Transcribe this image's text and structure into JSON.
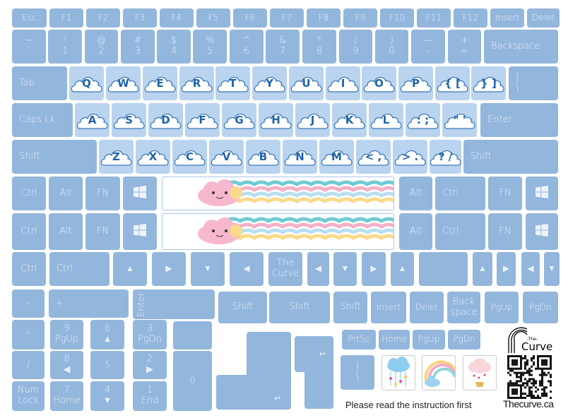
{
  "colors": {
    "key": "#93b6dc",
    "letter_key": "#bad3ee",
    "letter_text": "#1d63ad",
    "key_text": "#e8f0fa"
  },
  "rows": {
    "function_row": [
      {
        "label": "Esc"
      },
      {
        "label": "F1"
      },
      {
        "label": "F2"
      },
      {
        "label": "F3"
      },
      {
        "label": "F4"
      },
      {
        "label": "F5"
      },
      {
        "label": "F6"
      },
      {
        "label": "F7"
      },
      {
        "label": "F8"
      },
      {
        "label": "F9"
      },
      {
        "label": "F10"
      },
      {
        "label": "F11"
      },
      {
        "label": "F12"
      },
      {
        "label": "Insert"
      },
      {
        "label": "Delet"
      }
    ],
    "number_row": [
      {
        "top": "~",
        "bottom": "`"
      },
      {
        "top": "!",
        "bottom": "1"
      },
      {
        "top": "@",
        "bottom": "2"
      },
      {
        "top": "#",
        "bottom": "3"
      },
      {
        "top": "$",
        "bottom": "4"
      },
      {
        "top": "%",
        "bottom": "5"
      },
      {
        "top": "^",
        "bottom": "6"
      },
      {
        "top": "&",
        "bottom": "7"
      },
      {
        "top": "*",
        "bottom": "8"
      },
      {
        "top": "(",
        "bottom": "9"
      },
      {
        "top": ")",
        "bottom": "0"
      },
      {
        "top": "—",
        "bottom": "-"
      },
      {
        "top": "+",
        "bottom": "="
      },
      {
        "label": "Backspace"
      }
    ],
    "qwerty_row": [
      {
        "label": "Tab"
      },
      {
        "label": "Q",
        "cloud": true
      },
      {
        "label": "W",
        "cloud": true
      },
      {
        "label": "E",
        "cloud": true
      },
      {
        "label": "R",
        "cloud": true
      },
      {
        "label": "T",
        "cloud": true
      },
      {
        "label": "Y",
        "cloud": true
      },
      {
        "label": "U",
        "cloud": true
      },
      {
        "label": "I",
        "cloud": true
      },
      {
        "label": "O",
        "cloud": true
      },
      {
        "label": "P",
        "cloud": true
      },
      {
        "label": "{ [",
        "cloud": true
      },
      {
        "label": "} ]",
        "cloud": true
      },
      {
        "top": "|",
        "bottom": "\\"
      }
    ],
    "home_row": [
      {
        "label": "Caps Lk"
      },
      {
        "label": "A",
        "cloud": true
      },
      {
        "label": "S",
        "cloud": true
      },
      {
        "label": "D",
        "cloud": true
      },
      {
        "label": "F",
        "cloud": true
      },
      {
        "label": "G",
        "cloud": true
      },
      {
        "label": "H",
        "cloud": true
      },
      {
        "label": "J",
        "cloud": true
      },
      {
        "label": "K",
        "cloud": true
      },
      {
        "label": "L",
        "cloud": true
      },
      {
        "label": ": ;",
        "cloud": true
      },
      {
        "label": "\" '",
        "cloud": true
      },
      {
        "label": "Enter"
      }
    ],
    "shift_row": [
      {
        "label": "Shift"
      },
      {
        "label": "Z",
        "cloud": true
      },
      {
        "label": "X",
        "cloud": true
      },
      {
        "label": "C",
        "cloud": true
      },
      {
        "label": "V",
        "cloud": true
      },
      {
        "label": "B",
        "cloud": true
      },
      {
        "label": "N",
        "cloud": true
      },
      {
        "label": "M",
        "cloud": true
      },
      {
        "label": "< ,",
        "cloud": true
      },
      {
        "label": "> .",
        "cloud": true
      },
      {
        "label": "? /",
        "cloud": true
      },
      {
        "label": "Shift"
      }
    ],
    "bottom_row_1": [
      {
        "label": "Ctrl"
      },
      {
        "label": "Alt"
      },
      {
        "label": "FN"
      },
      {
        "icon": "windows-icon"
      },
      {
        "label": "Alt"
      },
      {
        "label": "Ctrl"
      },
      {
        "label": "FN"
      },
      {
        "icon": "windows-icon"
      }
    ],
    "bottom_row_2": [
      {
        "label": "Ctrl"
      },
      {
        "label": "Alt"
      },
      {
        "label": "FN"
      },
      {
        "icon": "windows-icon"
      },
      {
        "label": "Alt"
      },
      {
        "label": "Ctrl"
      },
      {
        "label": "FN"
      },
      {
        "icon": "windows-icon"
      }
    ],
    "arrow_row": [
      {
        "label": "Ctrl"
      },
      {
        "label": "Ctrl"
      },
      {
        "label": "▲"
      },
      {
        "label": "▶"
      },
      {
        "label": "▼"
      },
      {
        "label": "◀"
      },
      {
        "top": "The",
        "bottom": "Curve"
      },
      {
        "label": "◀"
      },
      {
        "label": "▼"
      },
      {
        "label": "▶"
      },
      {
        "label": "▲"
      },
      {
        "label": ""
      },
      {
        "label": "▲"
      },
      {
        "label": "▶"
      },
      {
        "label": "◀"
      },
      {
        "label": "▼"
      }
    ],
    "extra_row": [
      {
        "label": "-"
      },
      {
        "label": "+"
      },
      {
        "label": "Enter",
        "vertical": true
      },
      {
        "label": "Shift"
      },
      {
        "label": "Shift"
      },
      {
        "label": "Shift"
      },
      {
        "label": "Insert"
      },
      {
        "label": "Delet"
      },
      {
        "top": "Back",
        "bottom": "space"
      },
      {
        "label": "PgUp"
      },
      {
        "label": "PgDn"
      }
    ],
    "numpad": [
      {
        "label": "*"
      },
      {
        "top": "9",
        "bottom": "PgUp"
      },
      {
        "top": "6",
        "bottom": "▲"
      },
      {
        "top": "3",
        "bottom": "PgDn"
      },
      {
        "label": "."
      },
      {
        "label": "/"
      },
      {
        "top": "8",
        "bottom": "◀"
      },
      {
        "label": "5"
      },
      {
        "top": "2",
        "bottom": "▶"
      },
      {
        "label": "0"
      },
      {
        "top": "Num",
        "bottom": "Lock"
      },
      {
        "top": "7",
        "bottom": "Home"
      },
      {
        "top": "4",
        "bottom": "▼"
      },
      {
        "top": "1",
        "bottom": "End"
      }
    ],
    "nav_row": [
      {
        "label": "PrtSc"
      },
      {
        "label": "Home"
      },
      {
        "label": "PgUp"
      },
      {
        "label": "PgDn"
      },
      {
        "top": "|",
        "bottom": "\\"
      }
    ]
  },
  "enter_symbol": "↵",
  "footer": {
    "note": "Please read the instruction first",
    "website": "Thecurve.ca",
    "logo_text": "The Curve"
  }
}
